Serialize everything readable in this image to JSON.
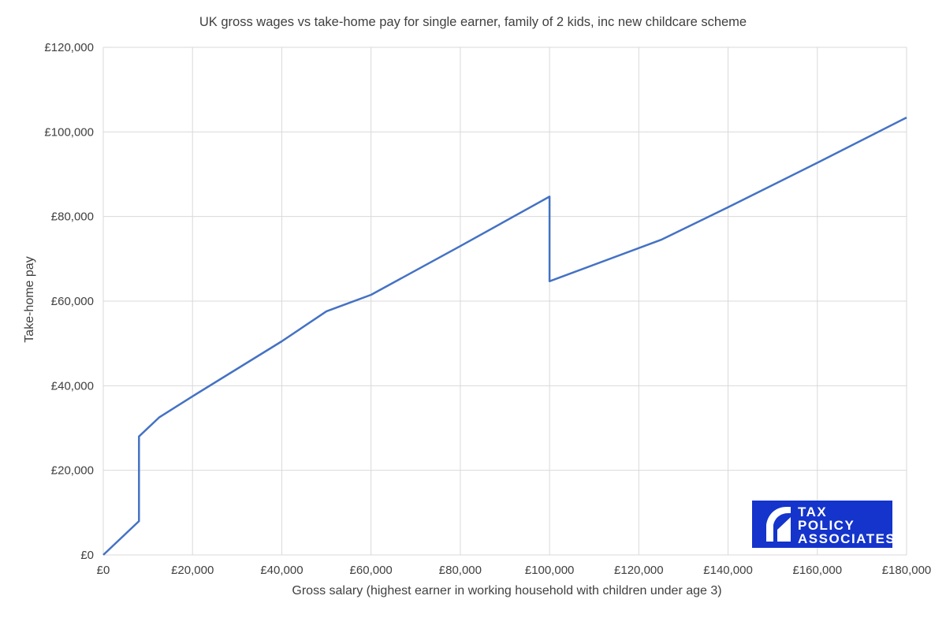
{
  "chart_data": {
    "type": "line",
    "title": "UK gross wages vs take-home pay for single earner, family of 2 kids, inc new childcare scheme",
    "xlabel": "Gross salary (highest earner in working household with children under age 3)",
    "ylabel": "Take-home pay",
    "xlim": [
      0,
      180000
    ],
    "ylim": [
      0,
      120000
    ],
    "x_ticks": [
      0,
      20000,
      40000,
      60000,
      80000,
      100000,
      120000,
      140000,
      160000,
      180000
    ],
    "x_tick_labels": [
      "£0",
      "£20,000",
      "£40,000",
      "£60,000",
      "£80,000",
      "£100,000",
      "£120,000",
      "£140,000",
      "£160,000",
      "£180,000"
    ],
    "y_ticks": [
      0,
      20000,
      40000,
      60000,
      80000,
      100000,
      120000
    ],
    "y_tick_labels": [
      "£0",
      "£20,000",
      "£40,000",
      "£60,000",
      "£80,000",
      "£100,000",
      "£120,000"
    ],
    "grid": "vertical-and-horizontal",
    "legend": "none",
    "series_color": "#4472C4",
    "series": [
      {
        "points": [
          {
            "x": 0,
            "y": 0
          },
          {
            "x": 8000,
            "y": 8000
          },
          {
            "x": 8000,
            "y": 28000
          },
          {
            "x": 12500,
            "y": 32500
          },
          {
            "x": 20000,
            "y": 37500
          },
          {
            "x": 40000,
            "y": 50500
          },
          {
            "x": 50000,
            "y": 57600
          },
          {
            "x": 60000,
            "y": 61500
          },
          {
            "x": 80000,
            "y": 73000
          },
          {
            "x": 100000,
            "y": 84700
          },
          {
            "x": 100000,
            "y": 64700
          },
          {
            "x": 125000,
            "y": 74500
          },
          {
            "x": 140000,
            "y": 82200
          },
          {
            "x": 160000,
            "y": 92700
          },
          {
            "x": 180000,
            "y": 103400
          }
        ]
      }
    ]
  },
  "logo": {
    "lines": [
      "TAX",
      "POLICY",
      "ASSOCIATES"
    ],
    "background": "#1434CB",
    "foreground": "#ffffff"
  }
}
